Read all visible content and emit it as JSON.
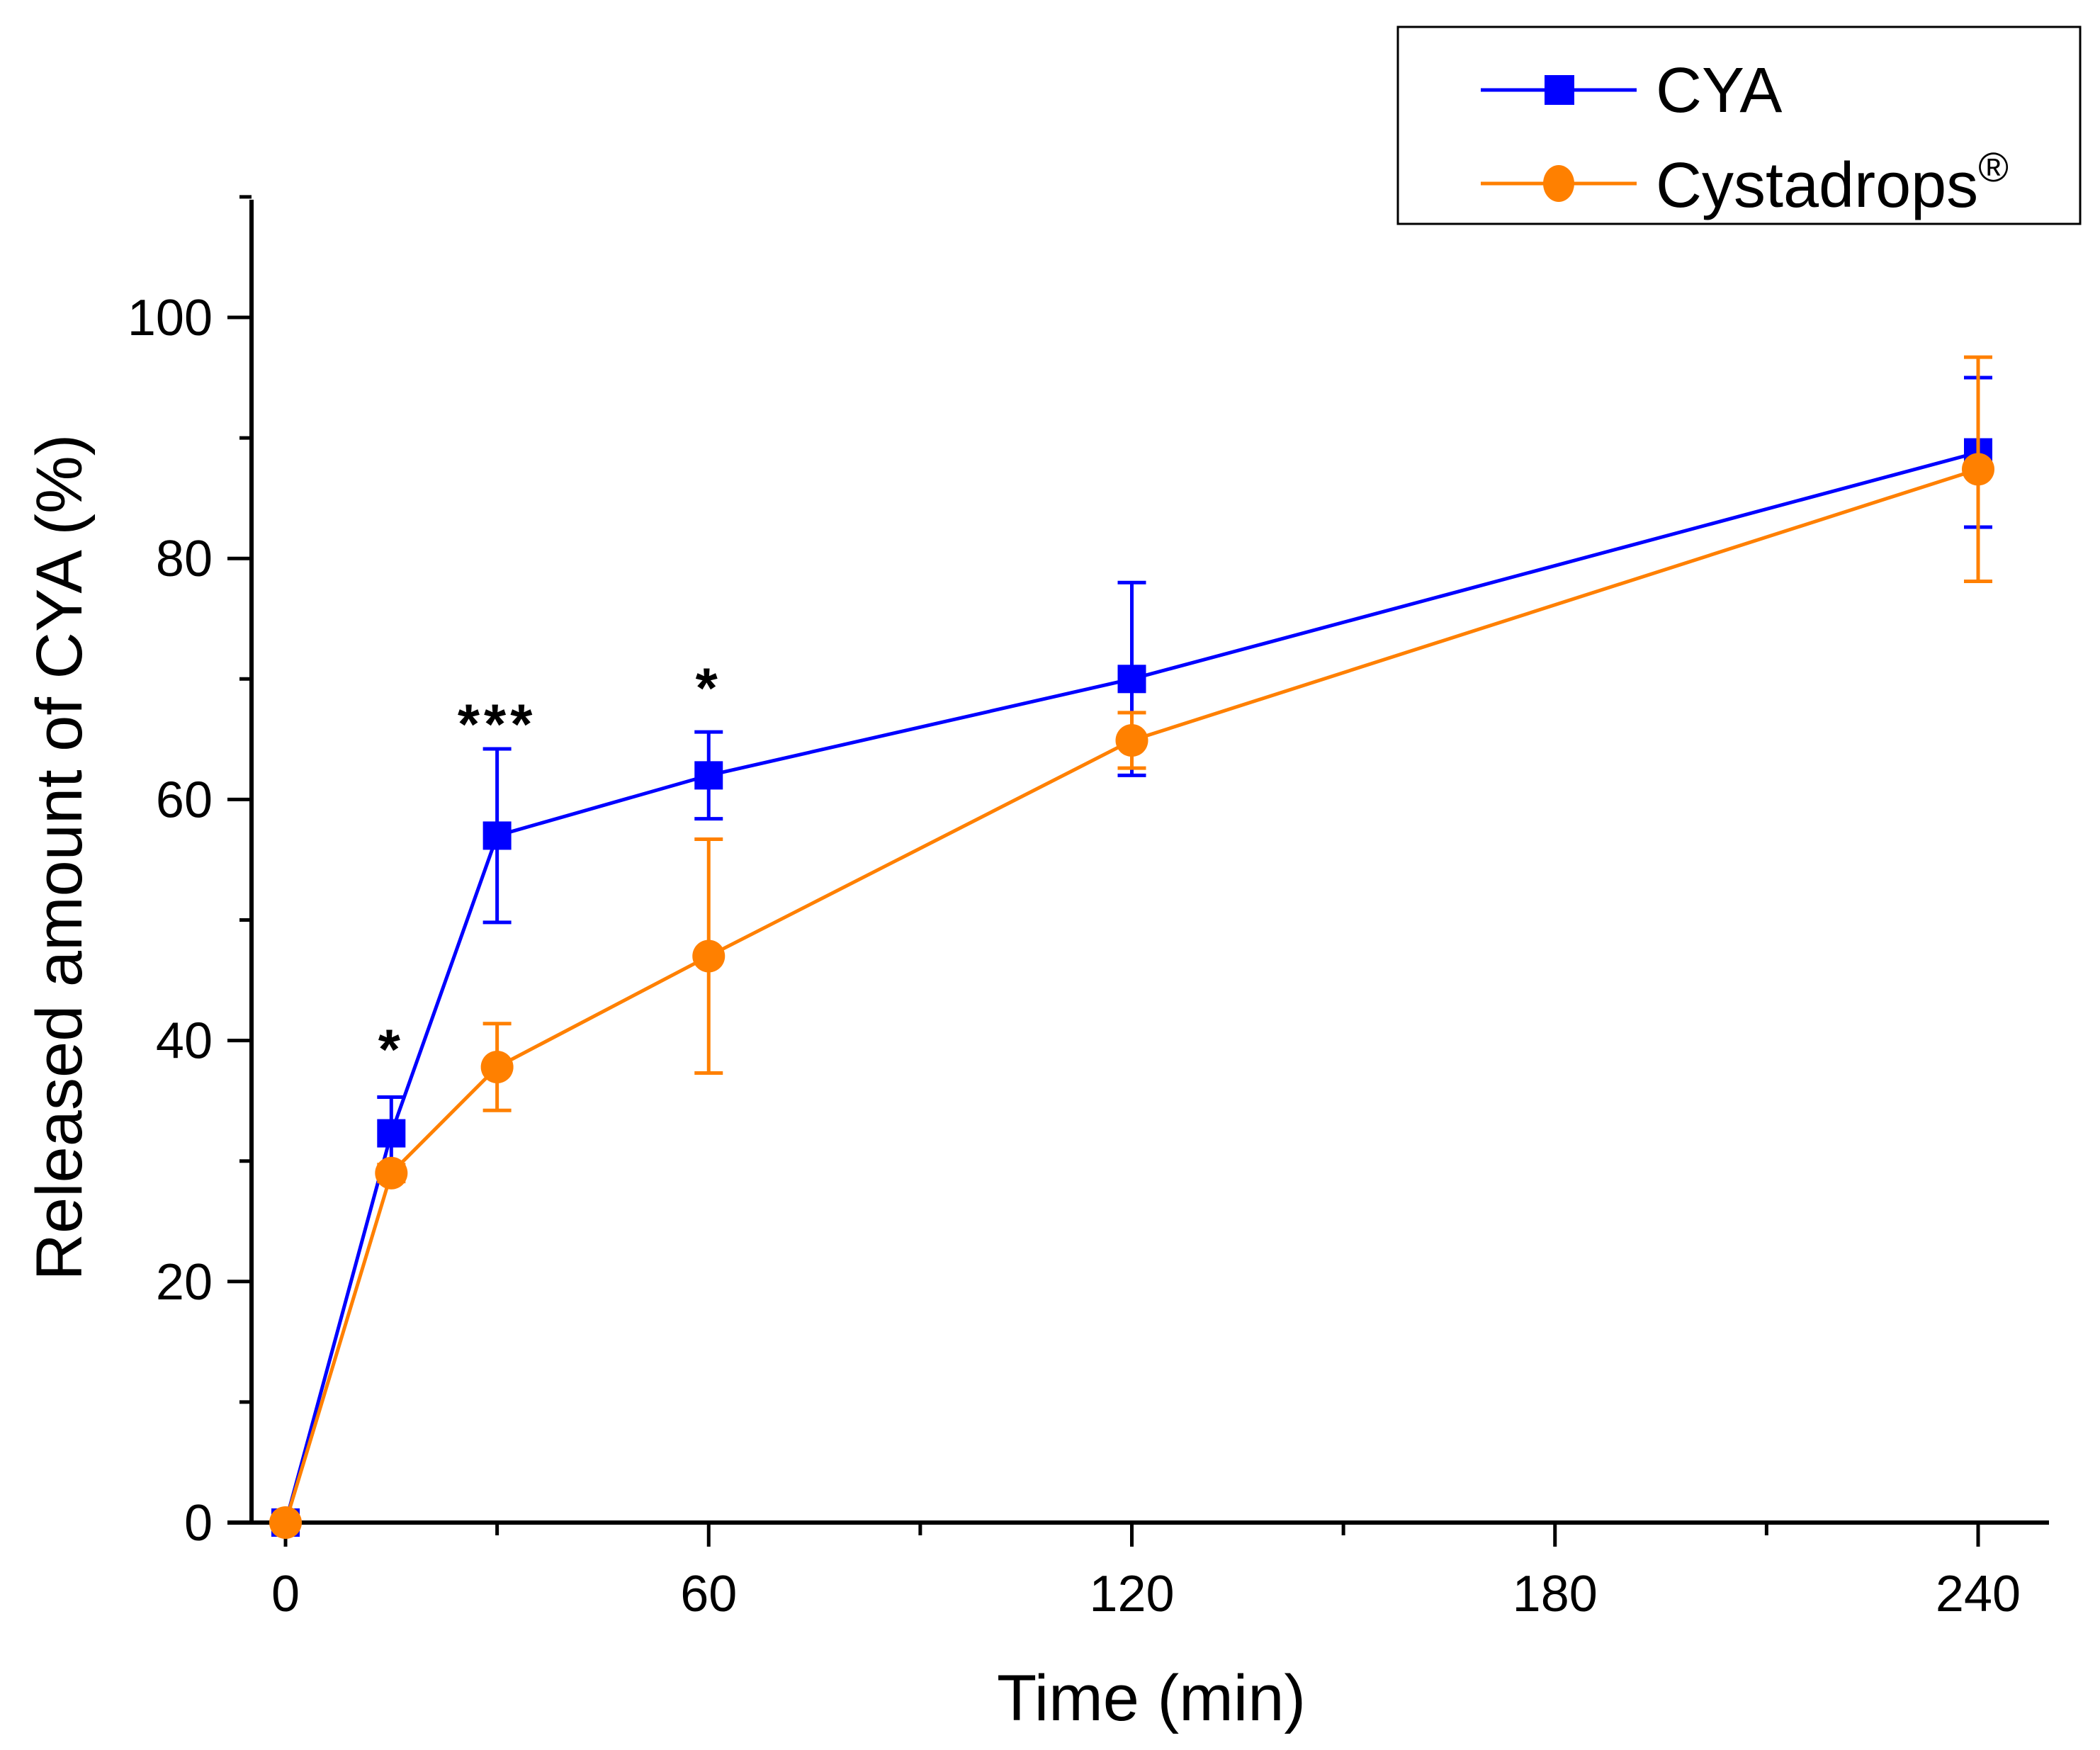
{
  "chart_data": {
    "type": "line",
    "title": "",
    "xlabel": "Time (min)",
    "ylabel": "Released amount of CYA (%)",
    "xlim": [
      -5,
      250
    ],
    "ylim": [
      0,
      110
    ],
    "xticks": [
      0,
      60,
      120,
      180,
      240
    ],
    "yticks": [
      0,
      20,
      40,
      60,
      80,
      100
    ],
    "x_minor_step": 30,
    "y_minor_step": 10,
    "grid": false,
    "legend_position": "top-right",
    "series": [
      {
        "name": "CYA",
        "color": "#0000ff",
        "marker": "square",
        "x": [
          0,
          15,
          30,
          60,
          120,
          240
        ],
        "values": [
          0,
          32.3,
          57.0,
          62.0,
          70.0,
          88.8
        ],
        "errors": [
          0,
          3.0,
          7.2,
          3.6,
          8.0,
          6.2
        ]
      },
      {
        "name": "Cystadrops",
        "name_sup": "®",
        "color": "#ff8000",
        "marker": "circle",
        "x": [
          0,
          15,
          30,
          60,
          120,
          240
        ],
        "values": [
          0,
          29.0,
          37.8,
          47.0,
          64.9,
          87.4
        ],
        "errors": [
          0,
          0.7,
          3.6,
          9.7,
          2.3,
          9.3
        ]
      }
    ],
    "annotations": [
      {
        "x": 15,
        "y": 40,
        "text": "*"
      },
      {
        "x": 30,
        "y": 67,
        "text": "***"
      },
      {
        "x": 60,
        "y": 70,
        "text": "*"
      }
    ]
  }
}
